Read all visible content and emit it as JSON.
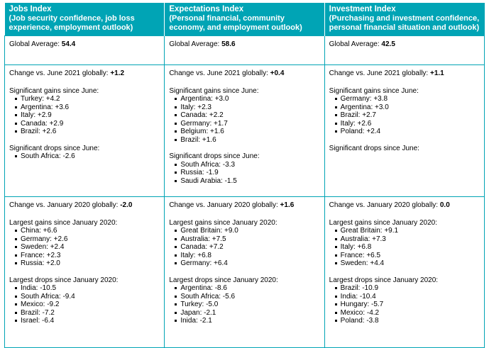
{
  "columns": [
    {
      "title": "Jobs Index",
      "subtitle": "(Job security confidence, job loss experience, employment outlook)",
      "global_average_label": "Global Average:",
      "global_average_value": "54.4",
      "june": {
        "change_label": "Change vs. June 2021 globally:",
        "change_value": "+1.2",
        "gains_title": "Significant gains since June:",
        "gains": [
          "Turkey: +4.2",
          "Argentina: +3.6",
          "Italy: +2.9",
          "Canada: +2.9",
          "Brazil: +2.6"
        ],
        "drops_title": "Significant drops since June:",
        "drops": [
          "South Africa: -2.6"
        ]
      },
      "january": {
        "change_label": "Change vs. January 2020 globally:",
        "change_value": "-2.0",
        "gains_title": "Largest gains since January 2020:",
        "gains": [
          "China: +6.6",
          "Germany: +2.6",
          "Sweden: +2.4",
          "France: +2.3",
          "Russia: +2.0"
        ],
        "drops_title": "Largest drops since January 2020:",
        "drops": [
          "India: -10.5",
          "South Africa: -9.4",
          "Mexico: -9.2",
          "Brazil: -7.2",
          "Israel: -6.4"
        ]
      }
    },
    {
      "title": "Expectations Index",
      "subtitle": "(Personal financial, community economy, and employment outlook)",
      "global_average_label": "Global Average:",
      "global_average_value": "58.6",
      "june": {
        "change_label": "Change vs. June 2021 globally:",
        "change_value": "+0.4",
        "gains_title": "Significant gains since June:",
        "gains": [
          "Argentina: +3.0",
          "Italy: +2.3",
          "Canada: +2.2",
          "Germany: +1.7",
          "Belgium: +1.6",
          "Brazil: +1.6"
        ],
        "drops_title": "Significant drops since June:",
        "drops": [
          "South Africa: -3.3",
          "Russia: -1.9",
          "Saudi Arabia: -1.5"
        ]
      },
      "january": {
        "change_label": "Change vs. January 2020 globally:",
        "change_value": "+1.6",
        "gains_title": "Largest gains since January 2020:",
        "gains": [
          "Great Britain: +9.0",
          "Australia: +7.5",
          "Canada: +7.2",
          "Italy: +6.8",
          "Germany: +6.4"
        ],
        "drops_title": "Largest drops since January 2020:",
        "drops": [
          "Argentina: -8.6",
          "South Africa: -5.6",
          "Turkey: -5.0",
          "Japan: -2.1",
          "Inida: -2.1"
        ]
      }
    },
    {
      "title": "Investment Index",
      "subtitle": "(Purchasing and investment confidence, personal financial situation and outlook)",
      "global_average_label": "Global Average:",
      "global_average_value": "42.5",
      "june": {
        "change_label": "Change vs. June 2021 globally:",
        "change_value": "+1.1",
        "gains_title": "Significant gains since June:",
        "gains": [
          "Germany: +3.8",
          "Argentina: +3.0",
          "Brazil: +2.7",
          "Italy: +2.6",
          "Poland: +2.4"
        ],
        "drops_title": "Significant drops since June:",
        "drops": []
      },
      "january": {
        "change_label": "Change vs. January 2020 globally:",
        "change_value": "0.0",
        "gains_title": "Largest gains since January 2020:",
        "gains": [
          "Great Britain: +9.1",
          "Australia: +7.3",
          "Italy: +6.8",
          "France: +6.5",
          "Sweden: +4.4"
        ],
        "drops_title": "Largest drops since January 2020:",
        "drops": [
          "Brazil: -10.9",
          "India: -10.4",
          "Hungary: -5.7",
          "Mexico: -4.2",
          "Poland: -3.8"
        ]
      }
    }
  ],
  "colors": {
    "header_bg": "#00a4b5",
    "border": "#00a4b5",
    "header_text": "#ffffff"
  }
}
